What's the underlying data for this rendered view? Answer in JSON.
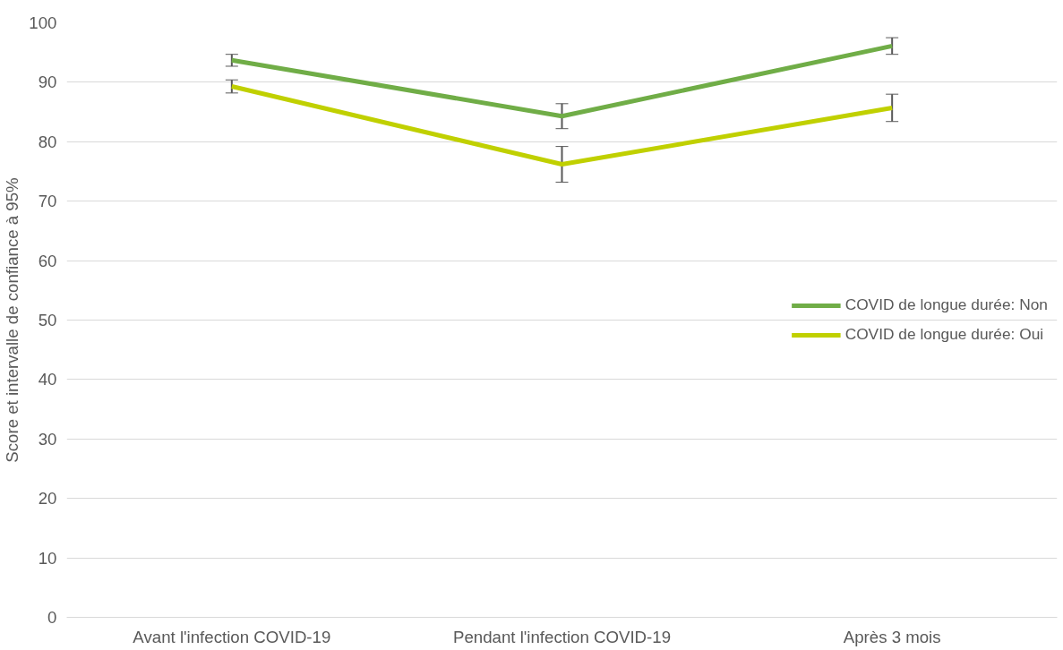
{
  "chart_data": {
    "type": "line",
    "ylabel": "Score et intervalle de confiance à 95%",
    "categories": [
      "Avant l'infection COVID-19",
      "Pendant l'infection COVID-19",
      "Après 3 mois"
    ],
    "series": [
      {
        "name": "COVID de longue durée: Non",
        "color": "#70ad47",
        "values": [
          93.7,
          84.3,
          96.1
        ],
        "errors": [
          1.0,
          2.1,
          1.4
        ]
      },
      {
        "name": "COVID de longue durée: Oui",
        "color": "#c0d000",
        "values": [
          89.3,
          76.2,
          85.7
        ],
        "errors": [
          1.1,
          3.0,
          2.3
        ]
      }
    ],
    "ylim": [
      0,
      100
    ],
    "yticks": [
      0,
      10,
      20,
      30,
      40,
      50,
      60,
      70,
      80,
      90,
      100
    ],
    "grid": "y",
    "legend": "right",
    "marker": "none",
    "line_style": "solid"
  }
}
